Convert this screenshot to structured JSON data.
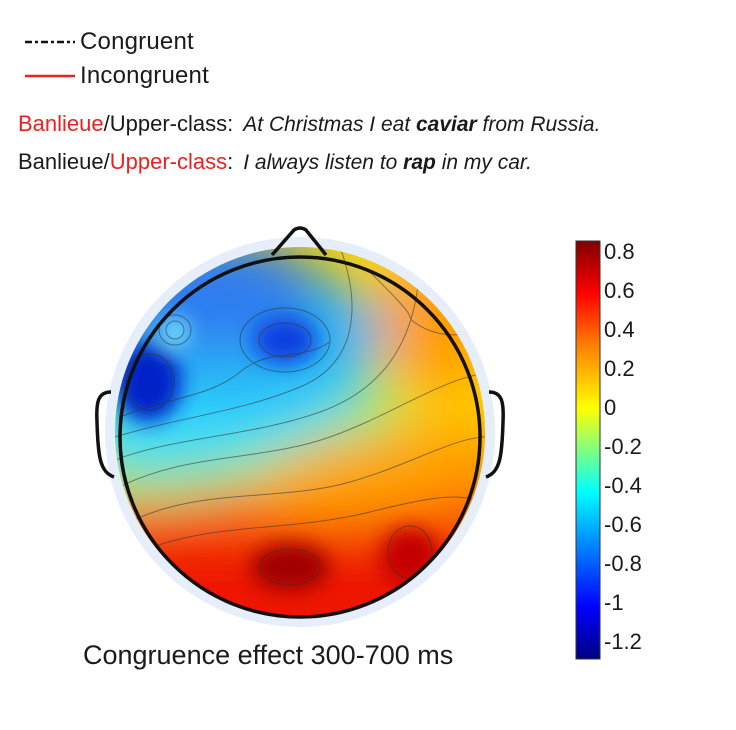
{
  "legend": {
    "congruent_label": "Congruent",
    "incongruent_label": "Incongruent",
    "congruent_color": "#111111",
    "incongruent_color": "#e8231f"
  },
  "sentences": [
    {
      "group_a": "Banlieue",
      "slash": "/",
      "group_b": "Upper-class",
      "colon": ":",
      "highlight": "a",
      "before": "At Christmas I eat ",
      "keyword": "caviar",
      "after": " from Russia."
    },
    {
      "group_a": "Banlieue",
      "slash": "/",
      "group_b": "Upper-class",
      "colon": ":",
      "highlight": "b",
      "before": "I always listen to ",
      "keyword": "rap",
      "after": " in my car."
    }
  ],
  "colorbar": {
    "ticks": [
      "0.8",
      "0.6",
      "0.4",
      "0.2",
      "0",
      "-0.2",
      "-0.4",
      "-0.6",
      "-0.8",
      "-1",
      "-1.2"
    ],
    "range": [
      -1.2,
      0.8
    ],
    "colormap": [
      "#000080",
      "#0000ff",
      "#00a0ff",
      "#00ffff",
      "#80ff80",
      "#ffff00",
      "#ff8000",
      "#ff0000",
      "#800000"
    ]
  },
  "caption": "Congruence effect 300-700 ms"
}
